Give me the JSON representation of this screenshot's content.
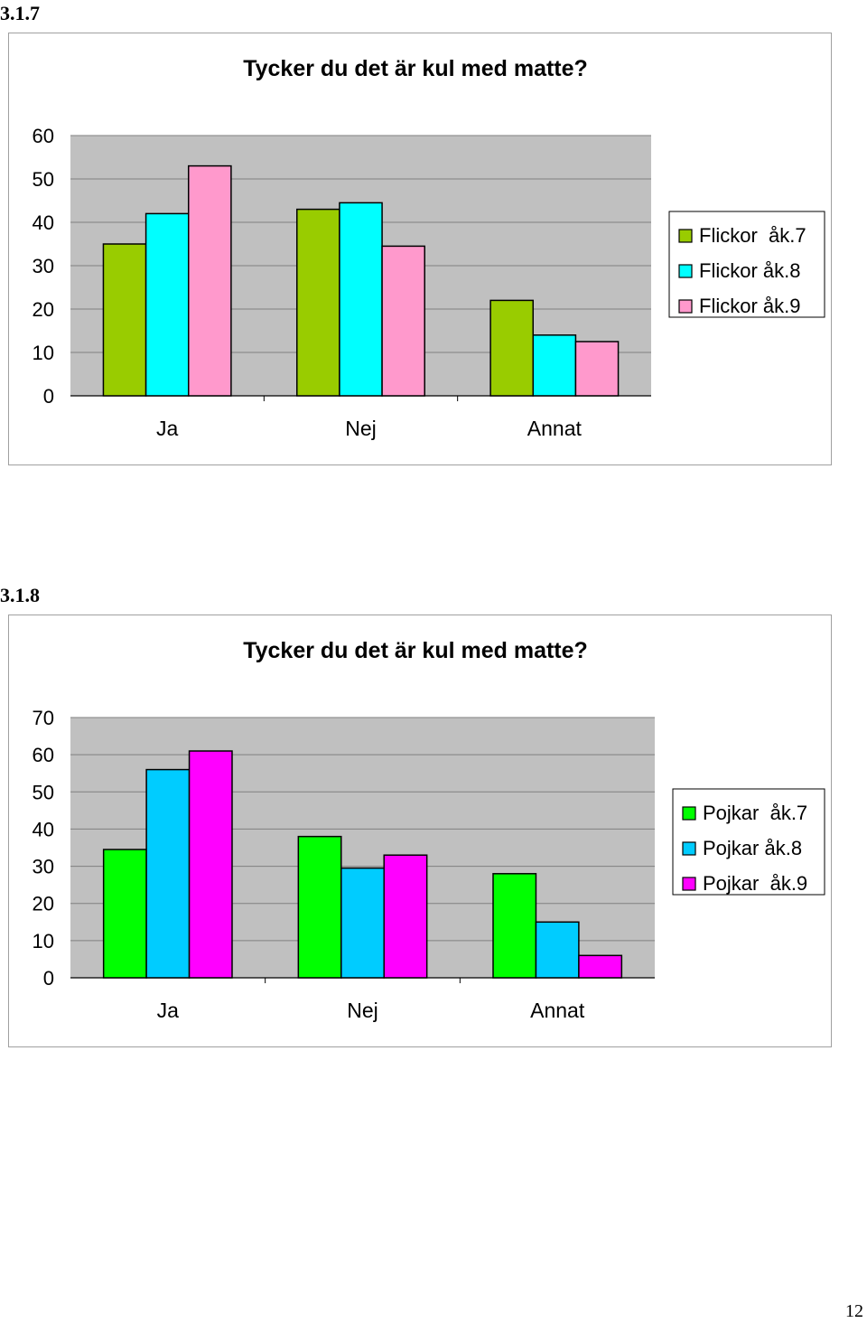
{
  "sections": [
    {
      "number": "3.1.7"
    },
    {
      "number": "3.1.8"
    }
  ],
  "page_number": "12",
  "chart_data": [
    {
      "type": "bar",
      "title": "Tycker du det är kul med matte?",
      "categories": [
        "Ja",
        "Nej",
        "Annat"
      ],
      "series": [
        {
          "name": "Flickor  åk.7",
          "values": [
            35,
            43,
            22
          ],
          "color": "#99cc00"
        },
        {
          "name": "Flickor åk.8",
          "values": [
            42,
            44.5,
            14
          ],
          "color": "#00ffff"
        },
        {
          "name": "Flickor åk.9",
          "values": [
            53,
            34.5,
            12.5
          ],
          "color": "#ff99cc"
        }
      ],
      "yticks": [
        "0",
        "10",
        "20",
        "30",
        "40",
        "50",
        "60"
      ],
      "ylim": [
        0,
        60
      ],
      "grid": true,
      "plot_background": "#c0c0c0",
      "legend_position": "right"
    },
    {
      "type": "bar",
      "title": "Tycker du det är kul med matte?",
      "categories": [
        "Ja",
        "Nej",
        "Annat"
      ],
      "series": [
        {
          "name": "Pojkar  åk.7",
          "values": [
            34.5,
            38,
            28
          ],
          "color": "#00ff00"
        },
        {
          "name": "Pojkar åk.8",
          "values": [
            56,
            29.5,
            15
          ],
          "color": "#00ccff"
        },
        {
          "name": "Pojkar  åk.9",
          "values": [
            61,
            33,
            6
          ],
          "color": "#ff00ff"
        }
      ],
      "yticks": [
        "0",
        "10",
        "20",
        "30",
        "40",
        "50",
        "60",
        "70"
      ],
      "ylim": [
        0,
        70
      ],
      "grid": true,
      "plot_background": "#c0c0c0",
      "legend_position": "right"
    }
  ]
}
